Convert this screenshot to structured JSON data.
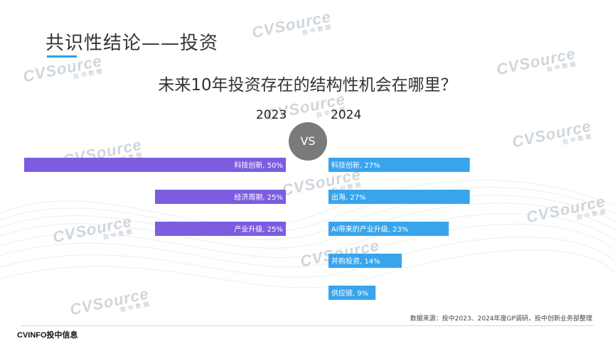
{
  "slide": {
    "title": "共识性结论——投资",
    "source": "数据来源：投中2023、2024年度GP调研，投中创新业务部整理",
    "brand": "CVINFO投中信息"
  },
  "watermark": {
    "text": "CVSource",
    "sub": "投中数据"
  },
  "colors": {
    "left_bar": "#7c5ce0",
    "right_bar": "#38a4ec",
    "accent": "#2f9fe9",
    "vs_circle": "#7a7a7a"
  },
  "chart_data": {
    "type": "bar",
    "title": "未来10年投资存在的结构性机会在哪里？",
    "center_label": "VS",
    "series": [
      {
        "name": "2023",
        "categories": [
          "科技创新",
          "经济周期",
          "产业升级"
        ],
        "values": [
          50,
          25,
          25
        ],
        "labels": [
          "科技创新, 50%",
          "经济周期, 25%",
          "产业升级, 25%"
        ]
      },
      {
        "name": "2024",
        "categories": [
          "科技创新",
          "出海",
          "AI带来的产业升级",
          "并购投资",
          "供应链"
        ],
        "values": [
          27,
          27,
          23,
          14,
          9
        ],
        "labels": [
          "科技创新, 27%",
          "出海, 27%",
          "AI带来的产业升级, 23%",
          "并购投资, 14%",
          "供应链, 9%"
        ]
      }
    ],
    "unit": "%"
  }
}
